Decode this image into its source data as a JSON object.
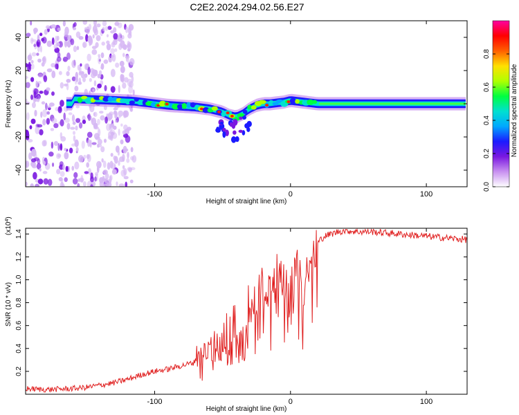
{
  "page_title": "C2E2.2024.294.02.56.E27",
  "chart_data": [
    {
      "type": "heatmap",
      "panel": "spectrogram",
      "title": "C2E2.2024.294.02.56.E27",
      "xlabel": "Height of straight line (km)",
      "ylabel": "Frequency (Hz)",
      "xlim": [
        -195,
        130
      ],
      "ylim": [
        -50,
        50
      ],
      "xticks": [
        -100,
        0,
        100
      ],
      "yticks": [
        -40,
        -20,
        0,
        20,
        40
      ],
      "colorbar": {
        "label": "Normalized spectral amplitude",
        "range": [
          0,
          1
        ],
        "ticks": [
          "0.0",
          "0.2",
          "0.4",
          "0.6",
          "0.8"
        ],
        "colormap": [
          "#ffffff",
          "#c890f0",
          "#7a18e0",
          "#1b1bff",
          "#00a8ff",
          "#00e0d0",
          "#00ff40",
          "#b0ff00",
          "#ffe000",
          "#ff6000",
          "#ff0000",
          "#ff00a0"
        ]
      },
      "ridge": {
        "x": [
          -160,
          -145,
          -130,
          -115,
          -100,
          -90,
          -80,
          -70,
          -60,
          -50,
          -45,
          -40,
          -35,
          -30,
          -25,
          -20,
          -15,
          -10,
          -5,
          0,
          5,
          10,
          15,
          20,
          40,
          60,
          80,
          100,
          120,
          130
        ],
        "y": [
          3,
          2.5,
          2,
          1.5,
          0,
          -1,
          -1.5,
          -2,
          -3,
          -5,
          -7,
          -8,
          -6,
          -3,
          -1,
          0,
          0,
          0.5,
          1,
          2,
          1.5,
          1,
          0.5,
          0,
          0,
          0,
          0,
          0,
          0,
          0
        ]
      }
    },
    {
      "type": "line",
      "panel": "snr",
      "xlabel": "Height of straight line (km)",
      "ylabel": "SNR (10 * v/v)",
      "y_multiplier_label": "(x10",
      "y_multiplier_exp": "4",
      "xlim": [
        -195,
        130
      ],
      "ylim": [
        0,
        14500
      ],
      "xticks": [
        -100,
        0,
        100
      ],
      "yticks": [
        "0.2",
        "0.4",
        "0.6",
        "0.8",
        "1.0",
        "1.2",
        "1.4"
      ],
      "line_color": "#e02020",
      "series": [
        {
          "x": [
            -195,
            -180,
            -160,
            -150,
            -140,
            -130,
            -120,
            -110,
            -100,
            -90,
            -80,
            -70,
            -60,
            -55,
            -50,
            -45,
            -40,
            -35,
            -30,
            -27,
            -25,
            -20,
            -15,
            -10,
            -5,
            0,
            5,
            8,
            10,
            12,
            15,
            18,
            20,
            22,
            25,
            30,
            35,
            40,
            50,
            60,
            70,
            80,
            90,
            100,
            110,
            120,
            130
          ],
          "y": [
            500,
            400,
            500,
            600,
            800,
            1000,
            1300,
            1700,
            2000,
            2200,
            2500,
            2800,
            3500,
            4000,
            4500,
            5000,
            6500,
            4500,
            7000,
            9000,
            7500,
            8500,
            9500,
            10000,
            10300,
            10700,
            11000,
            11500,
            8000,
            12000,
            12500,
            13000,
            13200,
            13500,
            13800,
            14000,
            14200,
            14300,
            14200,
            14200,
            14100,
            14000,
            13900,
            13800,
            13700,
            13600,
            13500
          ]
        }
      ]
    }
  ]
}
